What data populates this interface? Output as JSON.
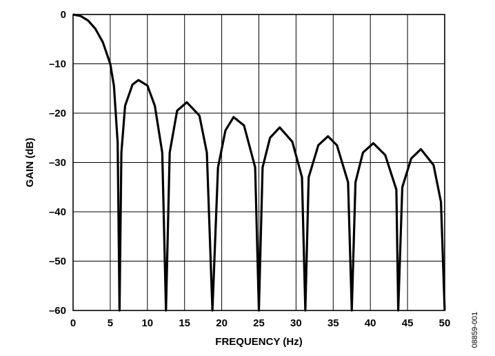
{
  "chart_data": {
    "type": "line",
    "xlabel": "FREQUENCY (Hz)",
    "ylabel": "GAIN (dB)",
    "xlim": [
      0,
      50
    ],
    "ylim": [
      -60,
      0
    ],
    "x_ticks": [
      "0",
      "5",
      "10",
      "15",
      "20",
      "25",
      "30",
      "35",
      "40",
      "45",
      "50"
    ],
    "y_ticks": [
      "0",
      "–10",
      "–20",
      "–30",
      "–40",
      "–50",
      "–60"
    ],
    "grid": true,
    "figure_id": "08859-001",
    "series": [
      {
        "style": "solid",
        "x": [
          0,
          1,
          2,
          3,
          4,
          5,
          5.5,
          6,
          6.25,
          6.5,
          7,
          8,
          8.8,
          10,
          11,
          12,
          12.5,
          13,
          14,
          15.3,
          17,
          18,
          18.75,
          19.5,
          20.5,
          21.6,
          23,
          24.5,
          25,
          25.5,
          26.5,
          27.8,
          29.5,
          30.8,
          31.25,
          31.7,
          33,
          34.3,
          35.5,
          37,
          37.5,
          38,
          39,
          40.4,
          42,
          43.5,
          43.75,
          44.3,
          45.5,
          46.8,
          48.5,
          49.5,
          50
        ],
        "y": [
          0,
          -0.3,
          -1.2,
          -2.9,
          -5.6,
          -10,
          -14.5,
          -26,
          -60,
          -28,
          -18.5,
          -14.2,
          -13.3,
          -14.4,
          -18.5,
          -28,
          -60,
          -28,
          -19.5,
          -17.8,
          -20.5,
          -28,
          -60,
          -31,
          -23.5,
          -20.8,
          -22.5,
          -31,
          -60,
          -31,
          -25,
          -22.9,
          -25.8,
          -33,
          -60,
          -33,
          -26.5,
          -24.7,
          -26.5,
          -34,
          -60,
          -34,
          -28,
          -26.1,
          -28.5,
          -35.5,
          -60,
          -35,
          -29.2,
          -27.3,
          -30.5,
          -38,
          -60
        ]
      }
    ]
  }
}
